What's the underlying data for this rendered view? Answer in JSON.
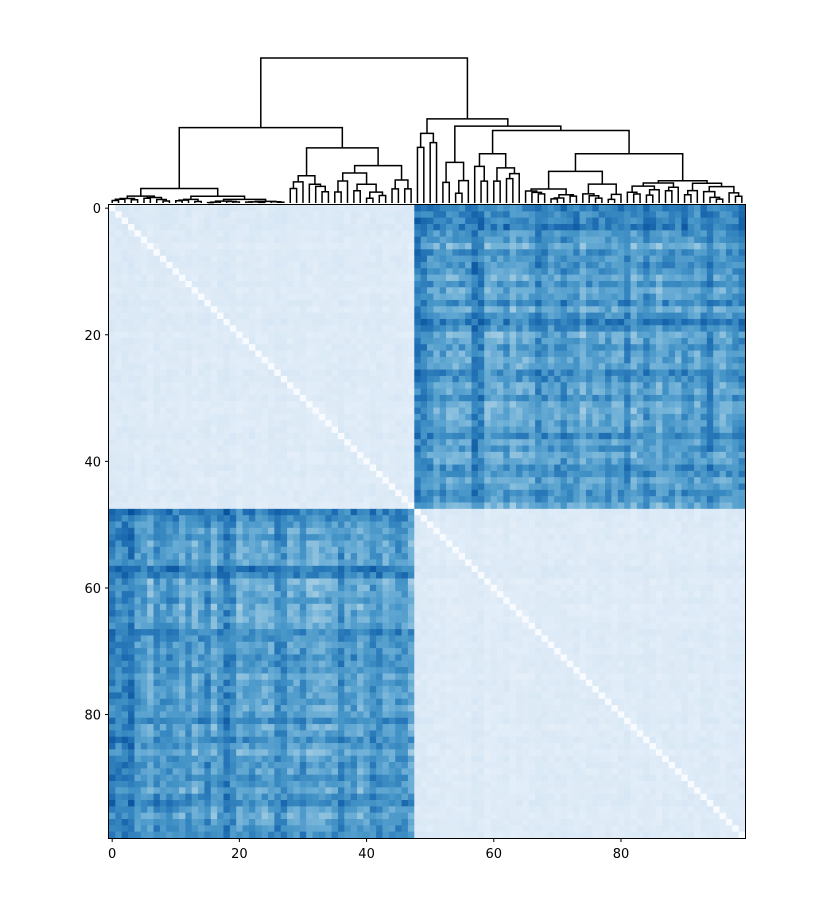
{
  "chart_data": [
    {
      "type": "dendrogram",
      "leaves": 100,
      "orientation": "top",
      "line_color": "#000000",
      "merges": [
        {
          "left_cluster_leaves": "0-47",
          "right_cluster_leaves": "48-99",
          "height": 1.0
        },
        {
          "left_cluster_leaves": "0-27",
          "right_cluster_leaves": "28-47",
          "height": 0.52
        },
        {
          "left_cluster_leaves": "48-51",
          "right_cluster_leaves": "52-99",
          "height": 0.58
        },
        {
          "left_cluster_leaves": "52-56",
          "right_cluster_leaves": "57-99",
          "height": 0.53
        },
        {
          "left_cluster_leaves": "57-64",
          "right_cluster_leaves": "65-99",
          "height": 0.5
        }
      ]
    },
    {
      "type": "heatmap",
      "rows": 100,
      "cols": 100,
      "colormap": "Blues",
      "value_range": [
        0,
        1
      ],
      "diagonal_value": 0,
      "block_structure": {
        "group_a": "0-47",
        "group_b": "48-99",
        "within_group_level": 0.15,
        "between_group_level": 0.6,
        "strong_indices": [
          0,
          1,
          2,
          3,
          15,
          18,
          48,
          49,
          57,
          58,
          67
        ]
      },
      "x_ticks": [
        "0",
        "20",
        "40",
        "60",
        "80"
      ],
      "y_ticks": [
        "0",
        "20",
        "40",
        "60",
        "80"
      ]
    }
  ]
}
